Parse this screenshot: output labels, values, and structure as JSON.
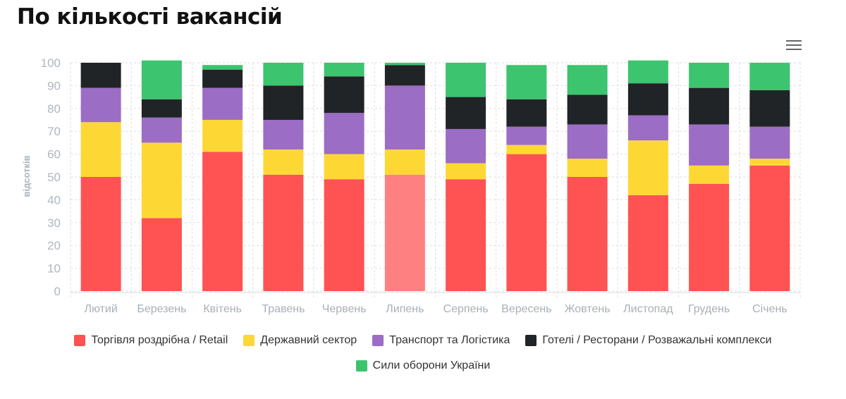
{
  "header": {
    "title": "По кількості вакансій",
    "menu_icon": "hamburger-menu-icon"
  },
  "chart_data": {
    "type": "bar",
    "stacked": true,
    "title": "По кількості вакансій",
    "xlabel": "",
    "ylabel": "відсотків",
    "ylim": [
      0,
      100
    ],
    "yticks": [
      "0",
      "10",
      "20",
      "30",
      "40",
      "50",
      "60",
      "70",
      "80",
      "90",
      "100"
    ],
    "grid": true,
    "legend_position": "bottom",
    "categories": [
      "Лютий",
      "Березень",
      "Квітень",
      "Травень",
      "Червень",
      "Липень",
      "Серпень",
      "Вересень",
      "Жовтень",
      "Листопад",
      "Грудень",
      "Січень"
    ],
    "highlighted_category": "Липень",
    "series": [
      {
        "name": "Торгівля роздрібна / Retail",
        "color": "#ff5252",
        "values": [
          50,
          32,
          61,
          51,
          49,
          51,
          49,
          60,
          50,
          42,
          47,
          55
        ]
      },
      {
        "name": "Державний сектор",
        "color": "#fdd835",
        "values": [
          24,
          33,
          14,
          11,
          11,
          11,
          7,
          4,
          8,
          24,
          8,
          3
        ]
      },
      {
        "name": "Транспорт та Логістика",
        "color": "#9c6dc4",
        "values": [
          15,
          11,
          14,
          13,
          18,
          28,
          15,
          8,
          15,
          11,
          18,
          14
        ]
      },
      {
        "name": "Готелі / Ресторани / Розважальні комплекси",
        "color": "#212427",
        "values": [
          11,
          8,
          8,
          15,
          16,
          9,
          14,
          12,
          13,
          14,
          16,
          16
        ]
      },
      {
        "name": "Сили оборони України",
        "color": "#3cc46e",
        "values": [
          0,
          17,
          2,
          10,
          6,
          1,
          15,
          15,
          13,
          10,
          11,
          12
        ]
      }
    ]
  }
}
